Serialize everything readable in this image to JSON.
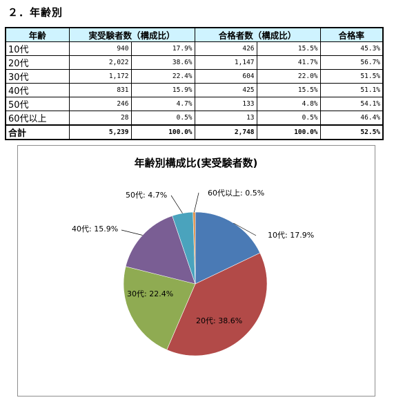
{
  "section_title": "２．年齢別",
  "table": {
    "headers": [
      "年齢",
      "実受験者数（構成比）",
      "合格者数（構成比）",
      "合格率"
    ],
    "rows": [
      {
        "label": "10代",
        "examinees": "940",
        "examinees_pct": "17.9%",
        "passed": "426",
        "passed_pct": "15.5%",
        "pass_rate": "45.3%"
      },
      {
        "label": "20代",
        "examinees": "2,022",
        "examinees_pct": "38.6%",
        "passed": "1,147",
        "passed_pct": "41.7%",
        "pass_rate": "56.7%"
      },
      {
        "label": "30代",
        "examinees": "1,172",
        "examinees_pct": "22.4%",
        "passed": "604",
        "passed_pct": "22.0%",
        "pass_rate": "51.5%"
      },
      {
        "label": "40代",
        "examinees": "831",
        "examinees_pct": "15.9%",
        "passed": "425",
        "passed_pct": "15.5%",
        "pass_rate": "51.1%"
      },
      {
        "label": "50代",
        "examinees": "246",
        "examinees_pct": "4.7%",
        "passed": "133",
        "passed_pct": "4.8%",
        "pass_rate": "54.1%"
      },
      {
        "label": "60代以上",
        "examinees": "28",
        "examinees_pct": "0.5%",
        "passed": "13",
        "passed_pct": "0.5%",
        "pass_rate": "46.4%"
      }
    ],
    "total": {
      "label": "合計",
      "examinees": "5,239",
      "examinees_pct": "100.0%",
      "passed": "2,748",
      "passed_pct": "100.0%",
      "pass_rate": "52.5%"
    }
  },
  "chart_data": {
    "type": "pie",
    "title": "年齢別構成比(実受験者数)",
    "categories": [
      "10代",
      "20代",
      "30代",
      "40代",
      "50代",
      "60代以上"
    ],
    "values": [
      17.9,
      38.6,
      22.4,
      15.9,
      4.7,
      0.5
    ],
    "data_labels": [
      "10代: 17.9%",
      "20代: 38.6%",
      "30代: 22.4%",
      "40代: 15.9%",
      "50代: 4.7%",
      "60代以上: 0.5%"
    ],
    "colors": [
      "#4a7ab5",
      "#b24a48",
      "#8fab52",
      "#7a5e94",
      "#4aa3bd",
      "#e08a3c"
    ],
    "start": "12 o'clock, clockwise",
    "legend": "none"
  }
}
